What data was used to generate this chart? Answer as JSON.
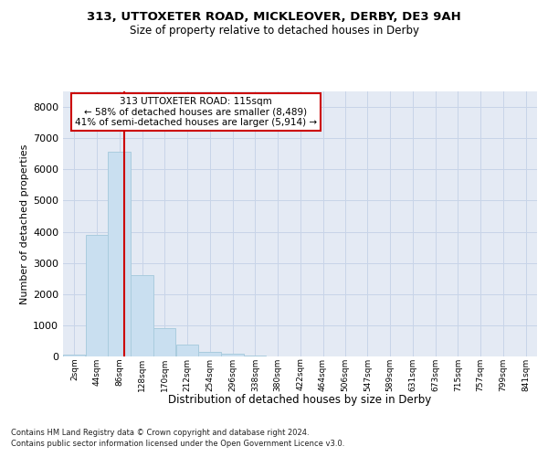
{
  "title1": "313, UTTOXETER ROAD, MICKLEOVER, DERBY, DE3 9AH",
  "title2": "Size of property relative to detached houses in Derby",
  "xlabel": "Distribution of detached houses by size in Derby",
  "ylabel": "Number of detached properties",
  "footnote1": "Contains HM Land Registry data © Crown copyright and database right 2024.",
  "footnote2": "Contains public sector information licensed under the Open Government Licence v3.0.",
  "bin_edges": [
    2,
    44,
    86,
    128,
    170,
    212,
    254,
    296,
    338,
    380,
    422,
    464,
    506,
    547,
    589,
    631,
    673,
    715,
    757,
    799,
    841
  ],
  "bin_counts": [
    50,
    3900,
    6580,
    2600,
    900,
    390,
    150,
    80,
    30,
    10,
    5,
    3,
    1,
    0,
    0,
    0,
    0,
    0,
    0,
    0
  ],
  "bar_color": "#c9dff0",
  "bar_edge_color": "#aaccde",
  "property_size": 115,
  "vline_color": "#cc0000",
  "annotation_line1": "313 UTTOXETER ROAD: 115sqm",
  "annotation_line2": "← 58% of detached houses are smaller (8,489)",
  "annotation_line3": "41% of semi-detached houses are larger (5,914) →",
  "annot_box_edgecolor": "#cc0000",
  "ylim_max": 8500,
  "yticks": [
    0,
    1000,
    2000,
    3000,
    4000,
    5000,
    6000,
    7000,
    8000
  ],
  "grid_color": "#c8d4e8",
  "axes_bg_color": "#e4eaf4",
  "fig_bg_color": "#ffffff"
}
